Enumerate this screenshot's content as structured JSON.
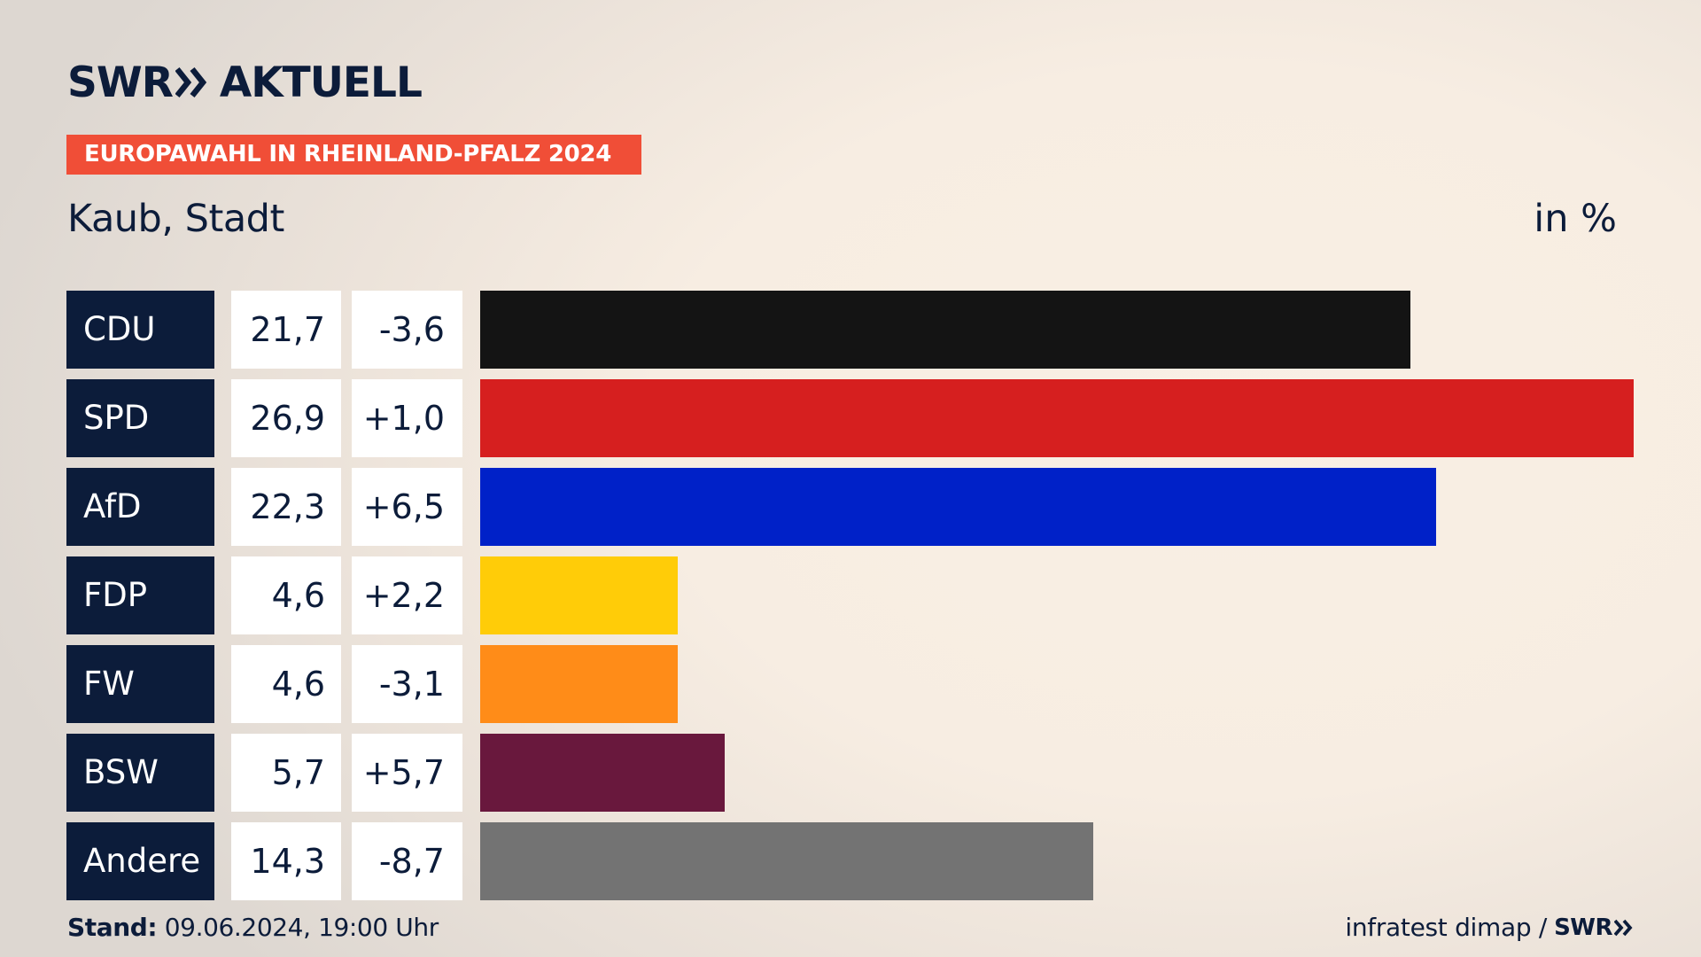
{
  "header": {
    "logo_swr": "SWR",
    "logo_aktuell": "AKTUELL",
    "badge": "EUROPAWAHL IN RHEINLAND-PFALZ 2024",
    "subtitle": "Kaub, Stadt",
    "unit": "in %"
  },
  "chart_data": {
    "type": "bar",
    "title": "Kaub, Stadt",
    "unit": "in %",
    "categories": [
      "CDU",
      "SPD",
      "AfD",
      "FDP",
      "FW",
      "BSW",
      "Andere"
    ],
    "values": [
      21.7,
      26.9,
      22.3,
      4.6,
      4.6,
      5.7,
      14.3
    ],
    "value_labels": [
      "21,7",
      "26,9",
      "22,3",
      "4,6",
      "4,6",
      "5,7",
      "14,3"
    ],
    "diff_labels": [
      "-3,6",
      "+1,0",
      "+6,5",
      "+2,2",
      "-3,1",
      "+5,7",
      "-8,7"
    ],
    "colors": [
      "#141414",
      "#d61f1f",
      "#0021c8",
      "#ffcc08",
      "#ff8c18",
      "#69183d",
      "#737373"
    ],
    "xlim": [
      0,
      26.9
    ]
  },
  "footer": {
    "stand_label": "Stand:",
    "stand_value": "09.06.2024, 19:00 Uhr",
    "source": "infratest dimap /",
    "source_logo": "SWR"
  }
}
